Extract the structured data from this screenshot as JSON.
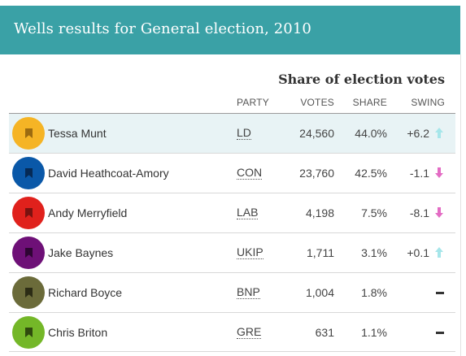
{
  "header": {
    "title": "Wells results for General election, 2010"
  },
  "results": {
    "heading": "Share of election votes",
    "columns": {
      "party": "PARTY",
      "votes": "VOTES",
      "share": "SHARE",
      "swing": "SWING"
    },
    "rows": [
      {
        "name": "Tessa Munt",
        "party": "LD",
        "votes": "24,560",
        "share": "44.0%",
        "swing": "+6.2",
        "swing_direction": "up",
        "color": "#f5b425",
        "icon_color": "#9c6b10"
      },
      {
        "name": "David Heathcoat-Amory",
        "party": "CON",
        "votes": "23,760",
        "share": "42.5%",
        "swing": "-1.1",
        "swing_direction": "down",
        "color": "#0a58a8",
        "icon_color": "#062a55"
      },
      {
        "name": "Andy Merryfield",
        "party": "LAB",
        "votes": "4,198",
        "share": "7.5%",
        "swing": "-8.1",
        "swing_direction": "down",
        "color": "#e0211c",
        "icon_color": "#7a1210"
      },
      {
        "name": "Jake Baynes",
        "party": "UKIP",
        "votes": "1,711",
        "share": "3.1%",
        "swing": "+0.1",
        "swing_direction": "up",
        "color": "#6e1077",
        "icon_color": "#2e0533"
      },
      {
        "name": "Richard Boyce",
        "party": "BNP",
        "votes": "1,004",
        "share": "1.8%",
        "swing": "",
        "swing_direction": "none",
        "color": "#6b6b3a",
        "icon_color": "#2c2c15"
      },
      {
        "name": "Chris Briton",
        "party": "GRE",
        "votes": "631",
        "share": "1.1%",
        "swing": "",
        "swing_direction": "none",
        "color": "#74b728",
        "icon_color": "#2f4a0e"
      }
    ]
  }
}
